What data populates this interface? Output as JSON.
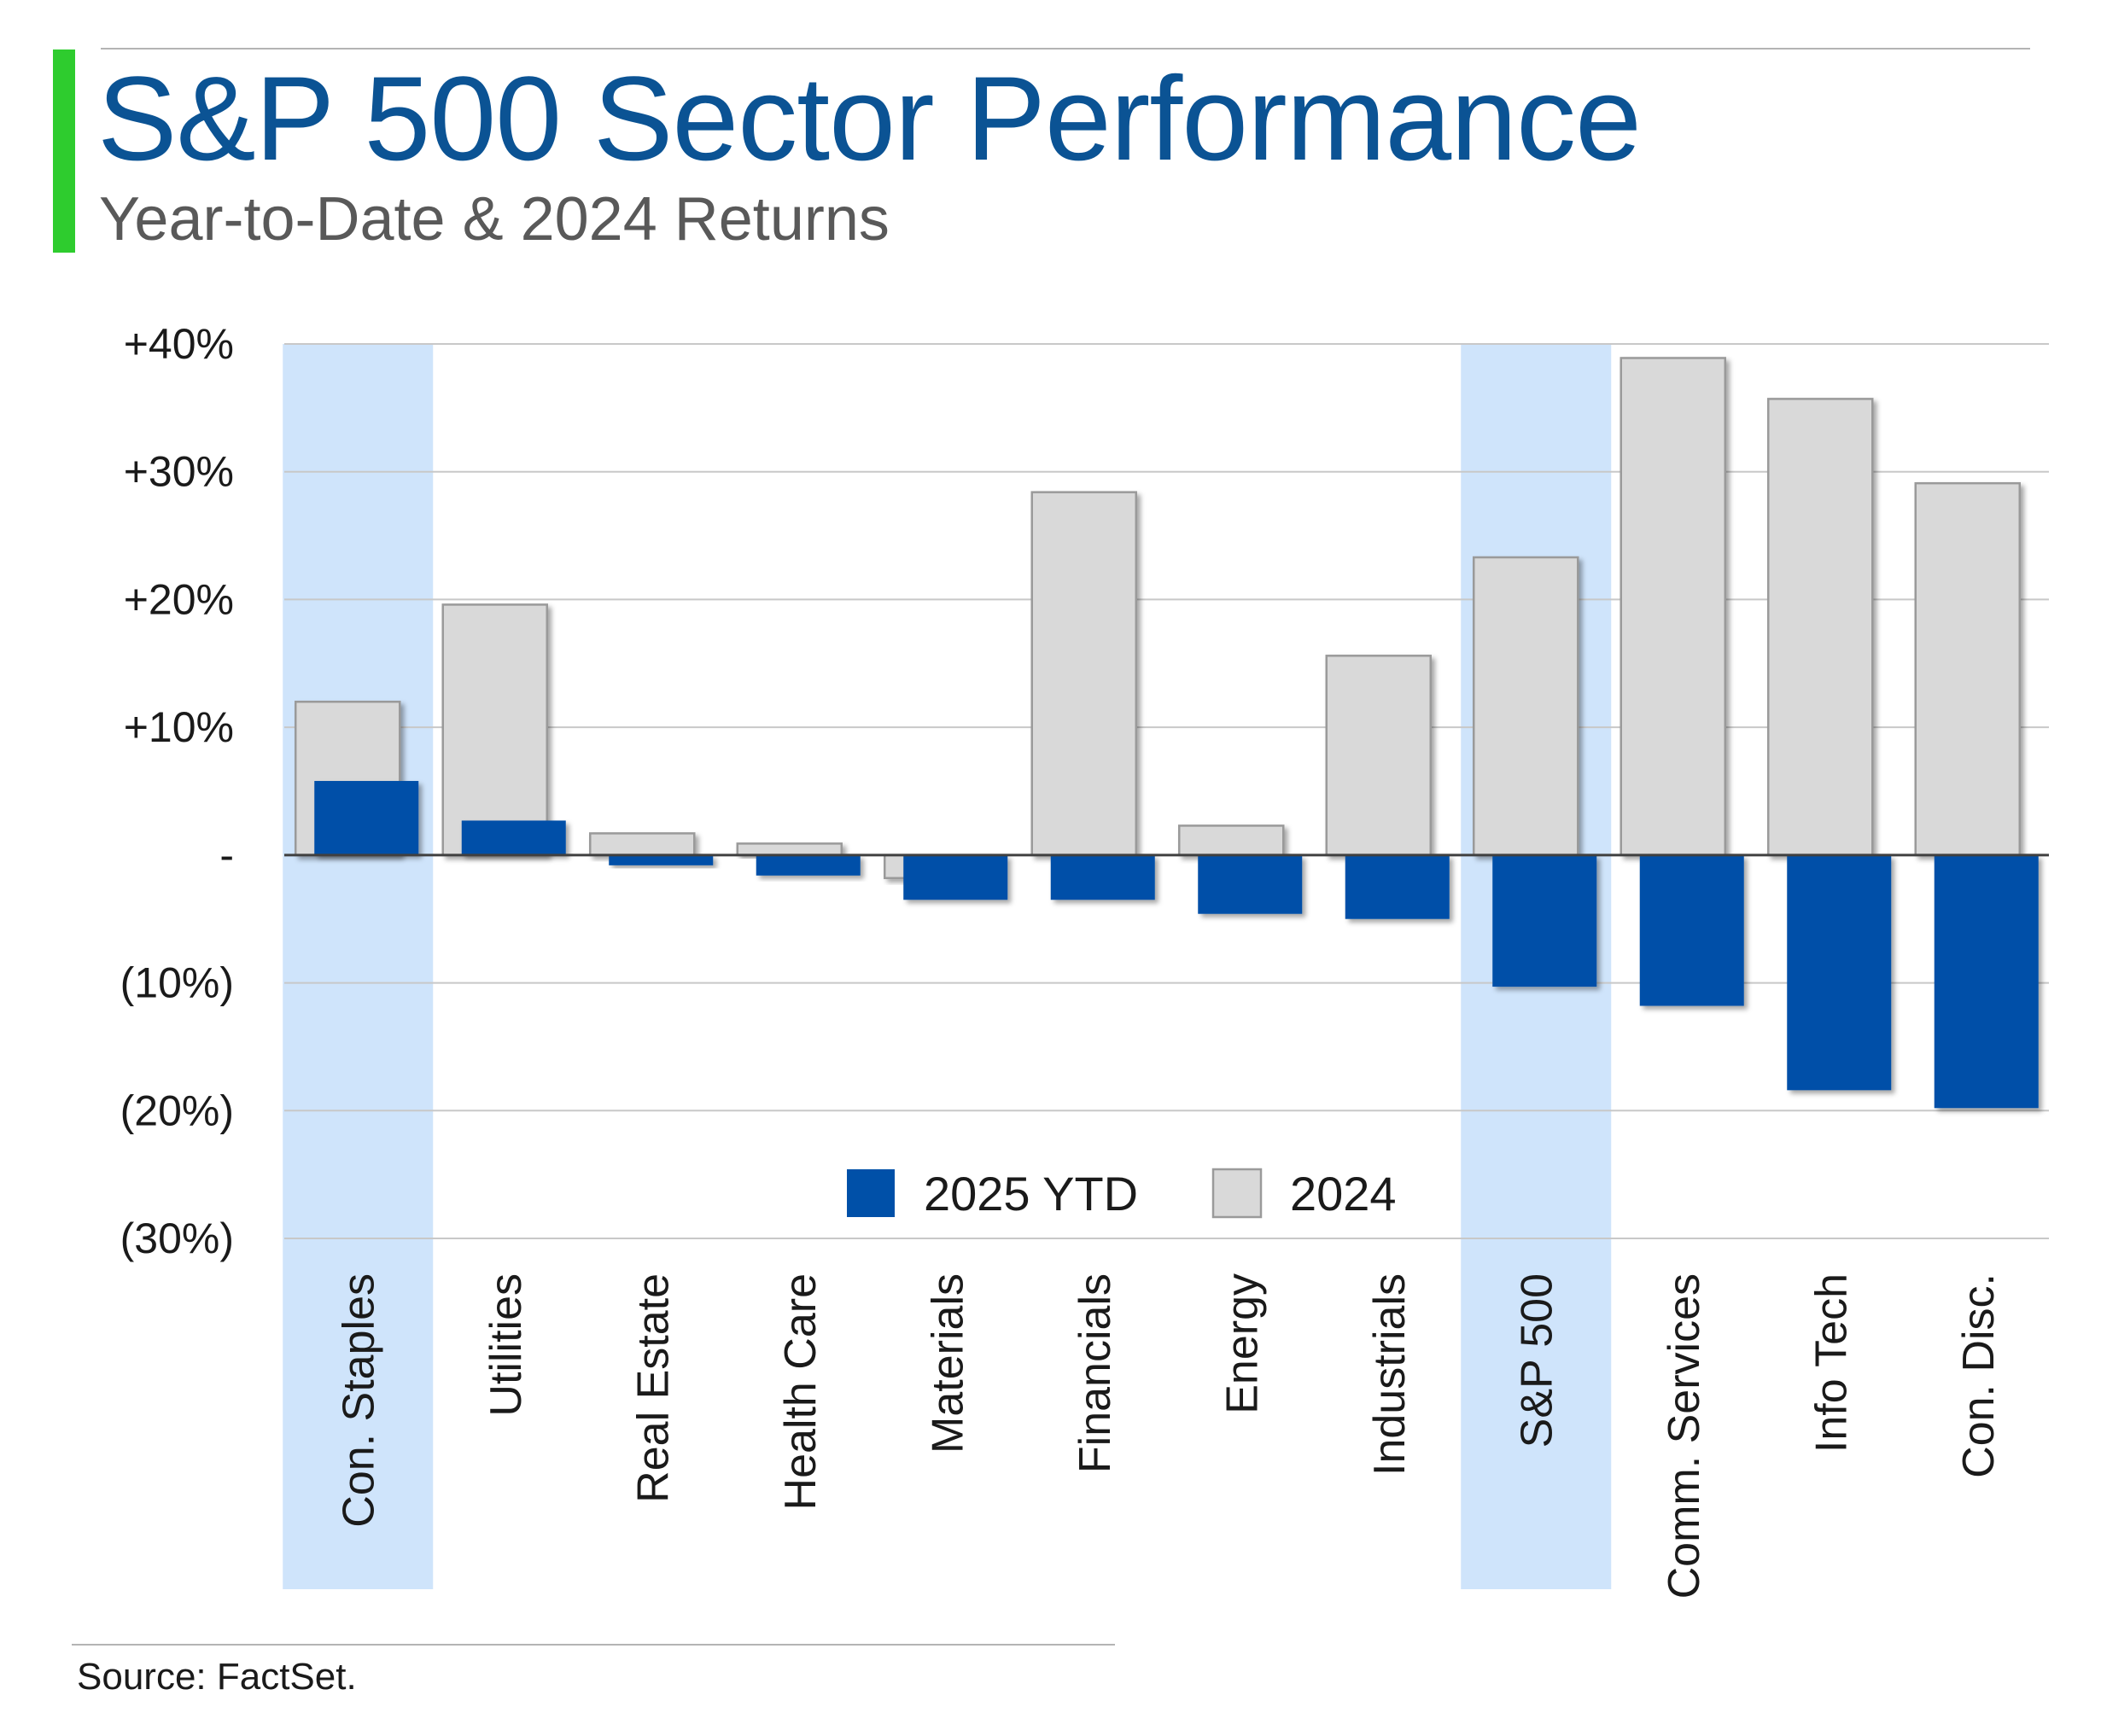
{
  "title": "S&P 500 Sector Performance",
  "subtitle": "Year-to-Date & 2024 Returns",
  "source": "Source: FactSet.",
  "colors": {
    "title": "#0b5394",
    "subtitle": "#595959",
    "accent_bar": "#2ecc2e",
    "ytd_bar": "#0050a8",
    "prior_bar": "#d9d9d9",
    "prior_bar_border": "#9a9a9a",
    "highlight": "#cfe4fb",
    "grid": "#c8c8c8",
    "zero_line": "#404040"
  },
  "chart_data": {
    "type": "bar",
    "title": "",
    "xlabel": "",
    "ylabel": "",
    "ylim": [
      -30,
      40
    ],
    "grid": true,
    "legend_position": "bottom-center",
    "yticks": [
      {
        "value": 40,
        "label": "+40%"
      },
      {
        "value": 30,
        "label": "+30%"
      },
      {
        "value": 20,
        "label": "+20%"
      },
      {
        "value": 10,
        "label": "+10%"
      },
      {
        "value": 0,
        "label": "-"
      },
      {
        "value": -10,
        "label": "(10%)"
      },
      {
        "value": -20,
        "label": "(20%)"
      },
      {
        "value": -30,
        "label": "(30%)"
      }
    ],
    "categories": [
      "Con. Staples",
      "Utilities",
      "Real Estate",
      "Health Care",
      "Materials",
      "Financials",
      "Energy",
      "Industrials",
      "S&P 500",
      "Comm. Services",
      "Info Tech",
      "Con. Disc."
    ],
    "highlighted_categories": [
      "Con. Staples",
      "S&P 500"
    ],
    "series": [
      {
        "name": "2025 YTD",
        "values": [
          5.8,
          2.7,
          -0.8,
          -1.6,
          -3.5,
          -3.5,
          -4.6,
          -5.0,
          -10.3,
          -11.8,
          -18.4,
          -19.8
        ]
      },
      {
        "name": "2024",
        "values": [
          12.0,
          19.6,
          1.7,
          0.9,
          -1.8,
          28.4,
          2.3,
          15.6,
          23.3,
          38.9,
          35.7,
          29.1
        ]
      }
    ]
  }
}
